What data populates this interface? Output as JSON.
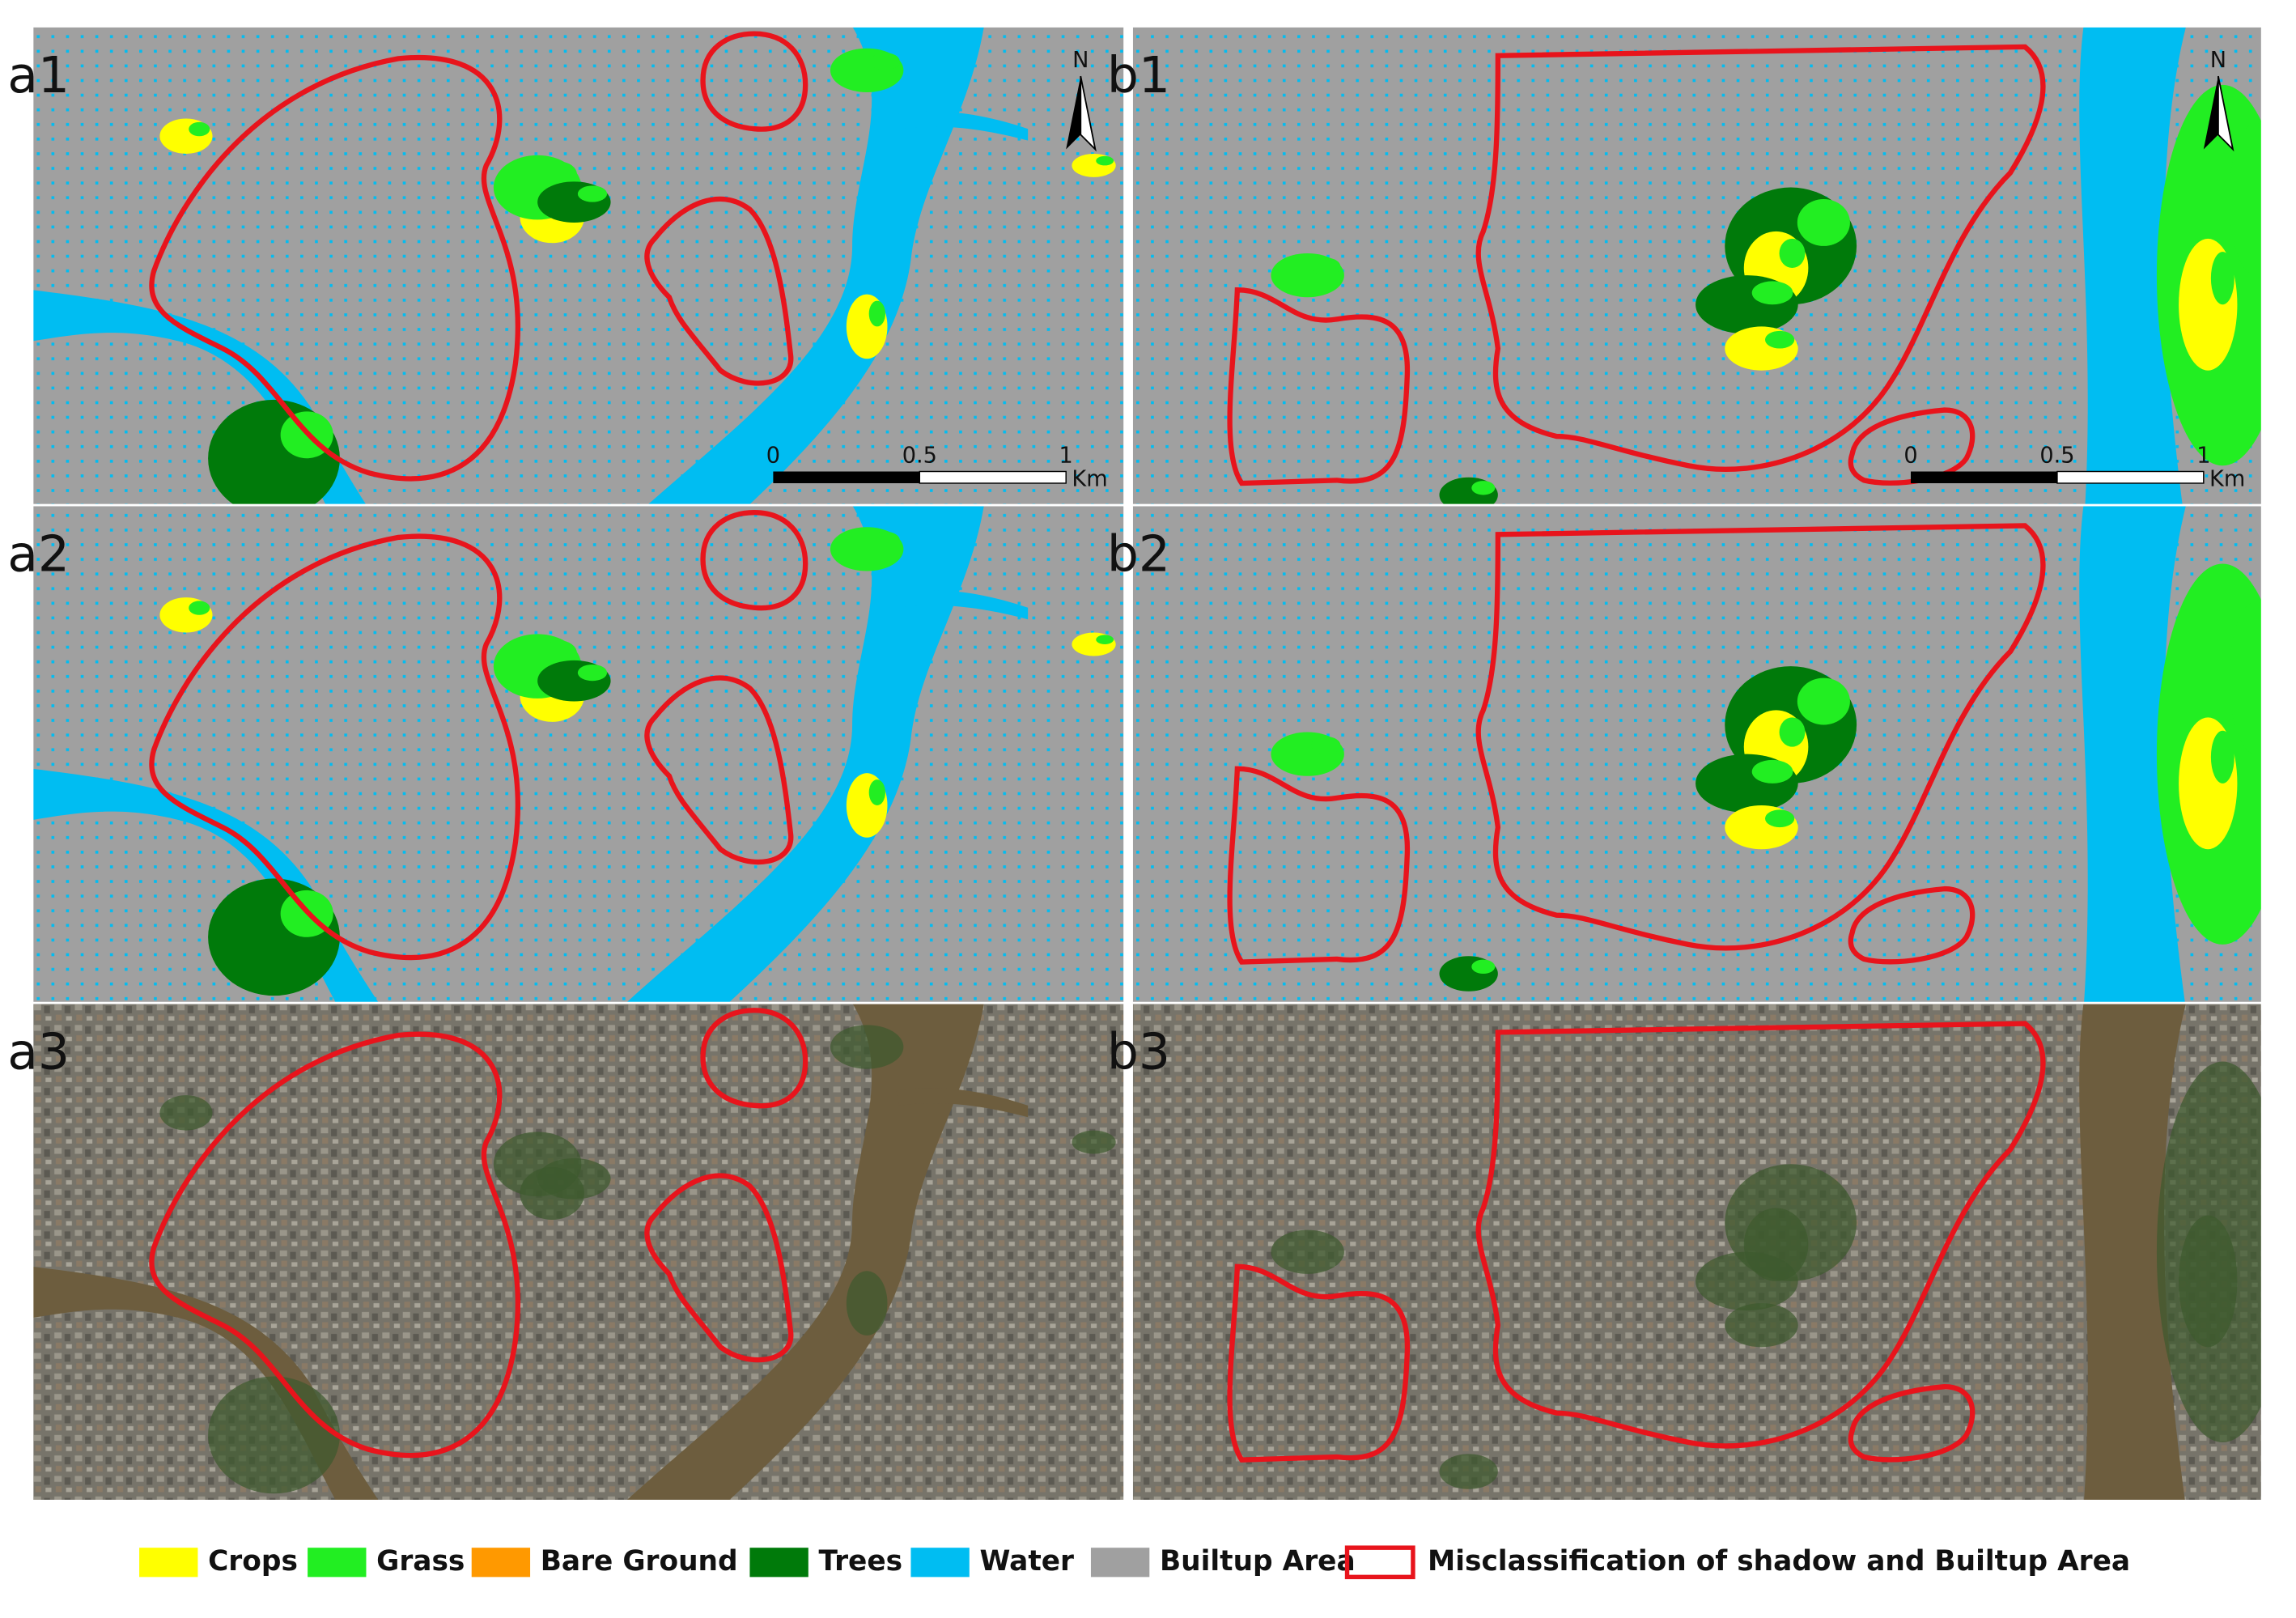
{
  "panels": [
    {
      "label": "a1",
      "north_arrow": "N",
      "scale_bar": [
        "0",
        "0.5",
        "1",
        "Km"
      ]
    },
    {
      "label": "a2"
    },
    {
      "label": "a3"
    },
    {
      "label": "b1",
      "north_arrow": "N",
      "scale_bar": [
        "0",
        "0.5",
        "1",
        "Km"
      ]
    },
    {
      "label": "b2"
    },
    {
      "label": "b3"
    }
  ],
  "legend": [
    {
      "label": "Crops",
      "color": "#ffff00"
    },
    {
      "label": "Grass",
      "color": "#22ee22"
    },
    {
      "label": "Bare Ground",
      "color": "#ff9900"
    },
    {
      "label": "Trees",
      "color": "#007a0a"
    },
    {
      "label": "Water",
      "color": "#00bdf2"
    },
    {
      "label": "Builtup Area",
      "color": "#a0a0a0"
    },
    {
      "label": "Misclassification of shadow and Builtup Area",
      "color": "#e8141c",
      "style": "outline"
    }
  ]
}
